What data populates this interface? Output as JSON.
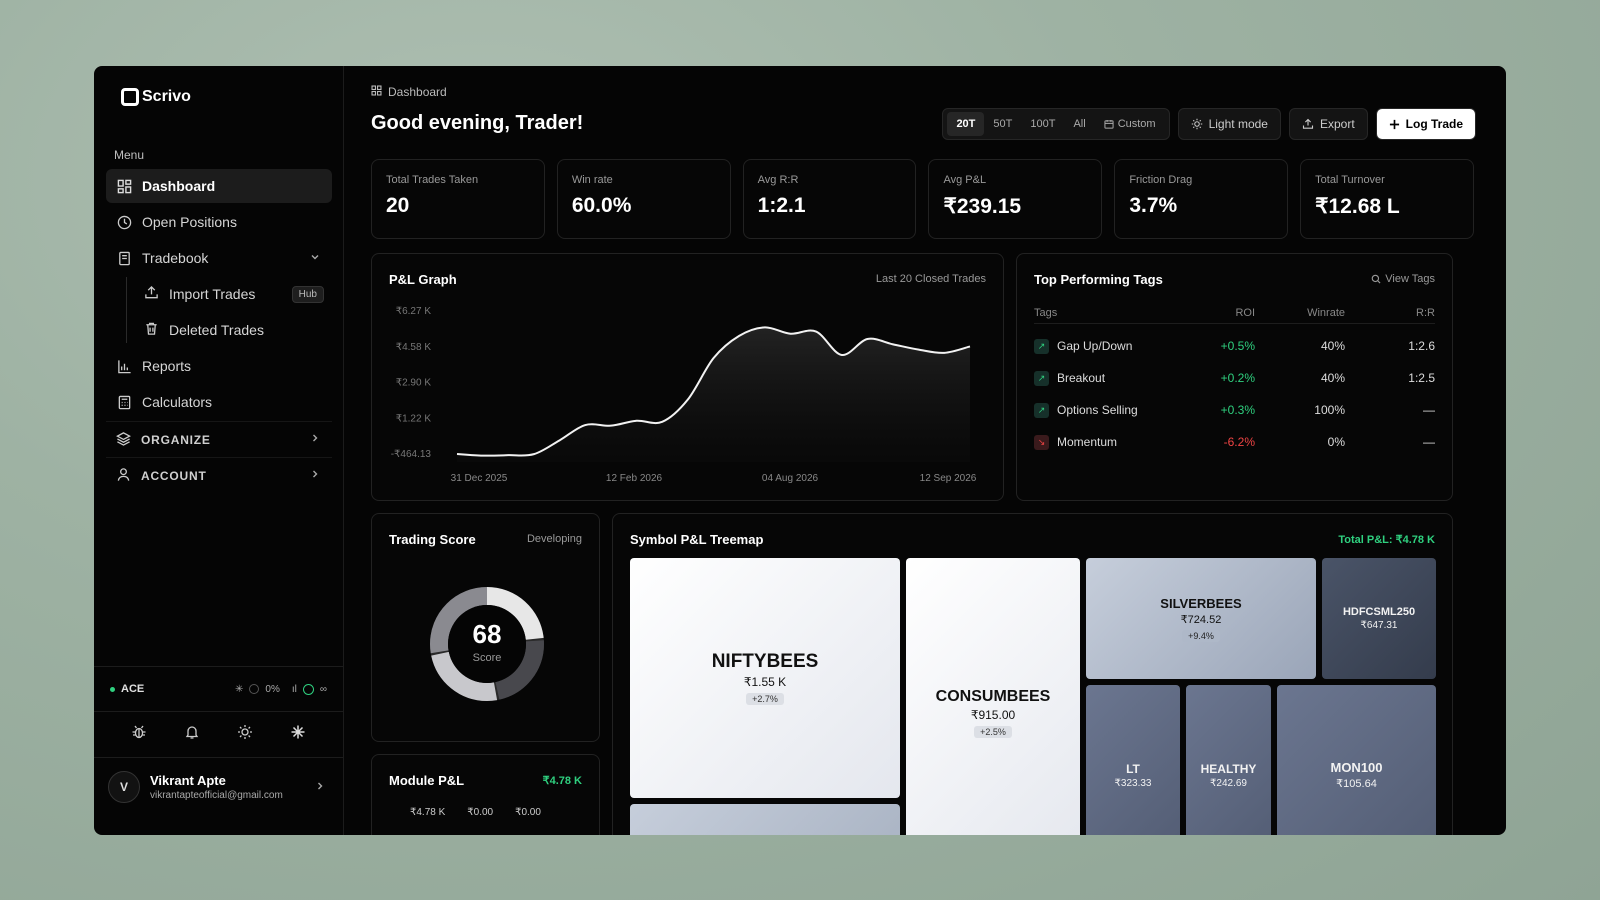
{
  "app": {
    "name": "Scrivo"
  },
  "sidebar": {
    "menu_label": "Menu",
    "items": [
      {
        "label": "Dashboard",
        "icon": "grid-icon"
      },
      {
        "label": "Open Positions",
        "icon": "clock-icon"
      },
      {
        "label": "Tradebook",
        "icon": "book-icon"
      },
      {
        "label": "Reports",
        "icon": "bar-chart-icon"
      },
      {
        "label": "Calculators",
        "icon": "calculator-icon"
      }
    ],
    "sub_items": [
      {
        "label": "Import Trades",
        "badge": "Hub",
        "icon": "upload-icon"
      },
      {
        "label": "Deleted Trades",
        "icon": "trash-icon"
      }
    ],
    "groups": [
      {
        "label": "ORGANIZE",
        "icon": "layers-icon"
      },
      {
        "label": "ACCOUNT",
        "icon": "user-icon"
      }
    ],
    "status": {
      "label": "ACE",
      "pct": "0%",
      "infinity": "∞"
    },
    "user": {
      "initial": "V",
      "name": "Vikrant Apte",
      "email": "vikrantapteofficial@gmail.com"
    }
  },
  "header": {
    "breadcrumb": "Dashboard",
    "greeting": "Good evening, Trader!",
    "ranges": [
      "20T",
      "50T",
      "100T",
      "All"
    ],
    "custom_label": "Custom",
    "light_mode_label": "Light mode",
    "export_label": "Export",
    "log_trade_label": "Log Trade"
  },
  "stats": [
    {
      "label": "Total Trades Taken",
      "value": "20"
    },
    {
      "label": "Win rate",
      "value": "60.0%"
    },
    {
      "label": "Avg R:R",
      "value": "1:2.1"
    },
    {
      "label": "Avg P&L",
      "value": "₹239.15"
    },
    {
      "label": "Friction Drag",
      "value": "3.7%"
    },
    {
      "label": "Total Turnover",
      "value": "₹12.68 L"
    }
  ],
  "pl_graph": {
    "title": "P&L Graph",
    "subtitle": "Last 20 Closed Trades",
    "chart_data": {
      "type": "area",
      "y_ticks": [
        "₹6.27 K",
        "₹4.58 K",
        "₹2.90 K",
        "₹1.22 K",
        "-₹464.13"
      ],
      "x_ticks": [
        "31 Dec 2025",
        "12 Feb 2026",
        "04 Aug 2026",
        "12 Sep 2026"
      ],
      "ylim": [
        -464.13,
        6270
      ],
      "values": [
        -464,
        -540,
        -520,
        -470,
        180,
        900,
        870,
        1100,
        1050,
        2100,
        4050,
        5100,
        5500,
        5200,
        5300,
        4200,
        4950,
        4700,
        4450,
        4300,
        4600
      ]
    }
  },
  "tags": {
    "title": "Top Performing Tags",
    "view_label": "View Tags",
    "headers": [
      "Tags",
      "ROI",
      "Winrate",
      "R:R"
    ],
    "rows": [
      {
        "name": "Gap Up/Down",
        "roi": "+0.5%",
        "winrate": "40%",
        "rr": "1:2.6",
        "positive": true
      },
      {
        "name": "Breakout",
        "roi": "+0.2%",
        "winrate": "40%",
        "rr": "1:2.5",
        "positive": true
      },
      {
        "name": "Options Selling",
        "roi": "+0.3%",
        "winrate": "100%",
        "rr": "—",
        "positive": true
      },
      {
        "name": "Momentum",
        "roi": "-6.2%",
        "winrate": "0%",
        "rr": "—",
        "positive": false
      }
    ]
  },
  "score": {
    "title": "Trading Score",
    "status": "Developing",
    "value": "68",
    "label": "Score",
    "fraction": 0.68
  },
  "module": {
    "title": "Module P&L",
    "total": "₹4.78 K",
    "values": [
      "₹4.78 K",
      "₹0.00",
      "₹0.00"
    ]
  },
  "treemap": {
    "title": "Symbol P&L Treemap",
    "total_label": "Total P&L: ₹4.78 K",
    "tiles": [
      {
        "name": "NIFTYBEES",
        "value": "₹1.55 K",
        "pct": "+2.7%"
      },
      {
        "name": "CONSUMBEES",
        "value": "₹915.00",
        "pct": "+2.5%"
      },
      {
        "name": "SILVERBEES",
        "value": "₹724.52",
        "pct": "+9.4%"
      },
      {
        "name": "HDFCSML250",
        "value": "₹647.31"
      },
      {
        "name": "LT",
        "value": "₹323.33"
      },
      {
        "name": "HEALTHY",
        "value": "₹242.69"
      },
      {
        "name": "MON100",
        "value": "₹105.64"
      }
    ]
  },
  "colors": {
    "accent_green": "#2fd07f",
    "negative_red": "#ef4444",
    "background": "#050505"
  }
}
